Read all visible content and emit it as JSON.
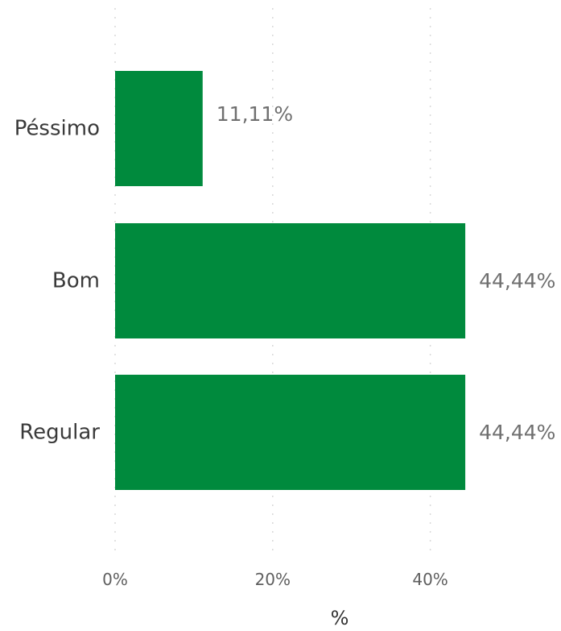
{
  "chart_data": {
    "type": "bar",
    "orientation": "horizontal",
    "categories": [
      "Péssimo",
      "Bom",
      "Regular"
    ],
    "values": [
      11.11,
      44.44,
      44.44
    ],
    "data_labels": [
      "11,11%",
      "44,44%",
      "44,44%"
    ],
    "xlabel": "%",
    "ylabel": "",
    "xlim": [
      0,
      46
    ],
    "ticks": [
      {
        "value": 0,
        "label": "0%"
      },
      {
        "value": 20,
        "label": "20%"
      },
      {
        "value": 40,
        "label": "40%"
      }
    ],
    "grid": "vertical dotted",
    "legend": "none",
    "colors": {
      "bar": "#008a3d",
      "grid": "#d9d9d9"
    }
  }
}
